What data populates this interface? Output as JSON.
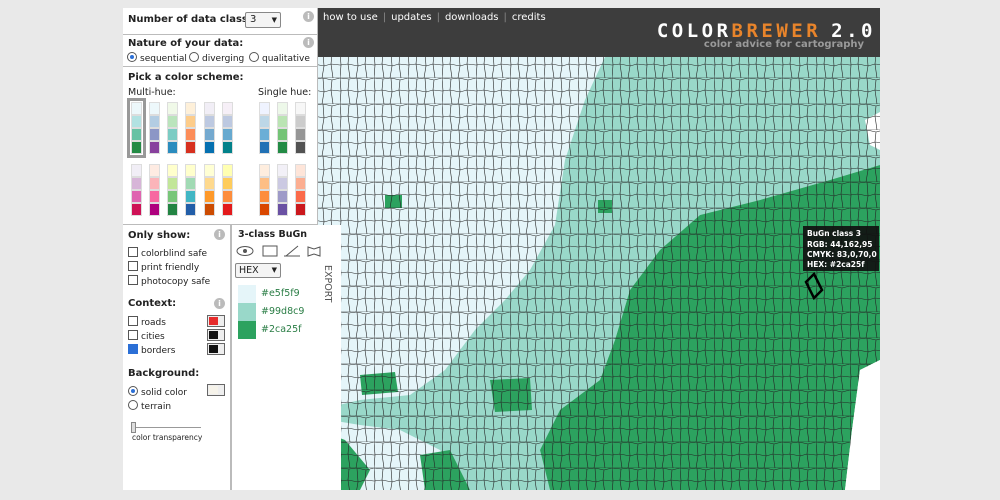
{
  "panel": {
    "classes_label": "Number of data classes:",
    "classes_value": "3",
    "info_icon": "i",
    "nature_label": "Nature of your data:",
    "nature_options": [
      "sequential",
      "diverging",
      "qualitative"
    ],
    "scheme_label": "Pick a color scheme:",
    "multi_hue": "Multi-hue:",
    "single_hue": "Single hue:",
    "only_show_label": "Only show:",
    "only_show_options": [
      "colorblind safe",
      "print friendly",
      "photocopy safe"
    ],
    "context_label": "Context:",
    "context_options": [
      "roads",
      "cities",
      "borders"
    ],
    "background_label": "Background:",
    "background_options": [
      "solid color",
      "terrain"
    ],
    "transparency_label": "color transparency"
  },
  "nav": [
    "how to use",
    "updates",
    "downloads",
    "credits"
  ],
  "logo": {
    "part1": "COLOR",
    "part2": "BREWER",
    "part3": "2.0",
    "tagline": "color advice for cartography"
  },
  "legend": {
    "title": "3-class BuGn",
    "format": "HEX",
    "export": "EXPORT",
    "classes": [
      "#e5f5f9",
      "#99d8c9",
      "#2ca25f"
    ]
  },
  "tooltip": {
    "title": "BuGn class 3",
    "lines": [
      "RGB: 44,162,95",
      "CMYK: 83,0,70,0",
      "HEX: #2ca25f"
    ]
  }
}
